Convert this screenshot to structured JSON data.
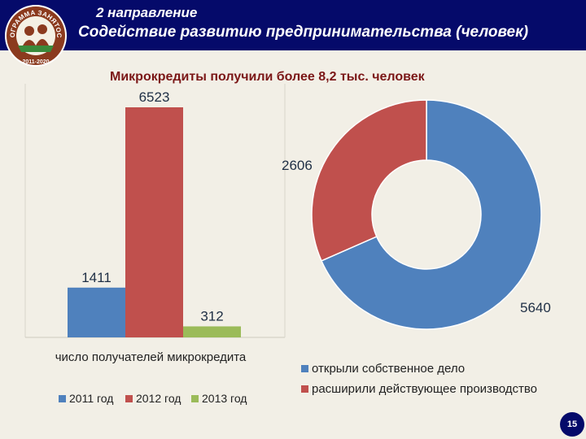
{
  "header": {
    "line1": "2 направление",
    "line2": "Содействие развитию предпринимательства (человек)"
  },
  "logo": {
    "text_top": "ПРОГРАММА ЗАНЯТОСТИ",
    "text_bottom": "2011-2020",
    "ring_color": "#8b3a1e",
    "band_color": "#3a8a3a"
  },
  "subtitle": "Микрокредиты получили более 8,2 тыс. человек",
  "page_number": "15",
  "chart_data": [
    {
      "type": "bar",
      "categories": [
        "число получателей микрокредита"
      ],
      "series": [
        {
          "name": "2011 год",
          "values": [
            1411
          ],
          "color": "#4f81bd"
        },
        {
          "name": "2012 год",
          "values": [
            6523
          ],
          "color": "#c0504d"
        },
        {
          "name": "2013 год",
          "values": [
            312
          ],
          "color": "#9bbb59"
        }
      ],
      "xlabel": "число получателей микрокредита",
      "ylabel": "",
      "ylim": [
        0,
        6523
      ],
      "data_labels": true,
      "grid": false,
      "legend": "bottom"
    },
    {
      "type": "pie",
      "style": "donut",
      "labels": [
        "открыли собственное дело",
        "расширили действующее производство"
      ],
      "values": [
        5640,
        2606
      ],
      "colors": [
        "#4f81bd",
        "#c0504d"
      ],
      "data_labels": true,
      "legend": "bottom"
    }
  ]
}
